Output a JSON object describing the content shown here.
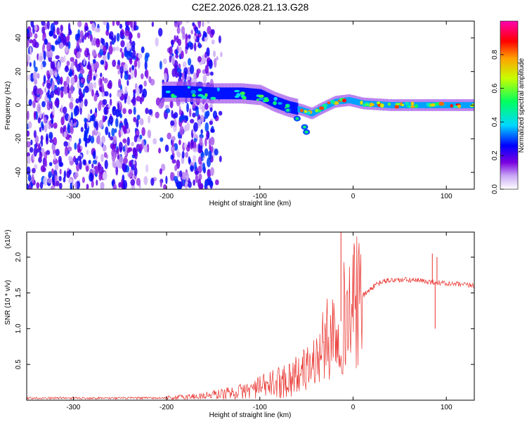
{
  "chart_data": [
    {
      "type": "heatmap",
      "title": "C2E2.2026.028.21.13.G28",
      "xlabel": "Height of straight line (km)",
      "ylabel": "Frequency (Hz)",
      "xlim": [
        -350,
        130
      ],
      "ylim": [
        -50,
        50
      ],
      "x_ticks": [
        -300,
        -200,
        -100,
        0,
        100
      ],
      "y_ticks": [
        -40,
        -20,
        0,
        20,
        40
      ],
      "colorbar": {
        "label": "Normalized spectral amplitude",
        "range": [
          0,
          1
        ],
        "ticks": [
          "0.0",
          "0.2",
          "0.4",
          "0.6",
          "0.8"
        ],
        "colors": [
          "#ffffff",
          "#c9a7f5",
          "#7a00e0",
          "#0000ff",
          "#00d8ff",
          "#00ff60",
          "#c8ff00",
          "#ffa000",
          "#ff0000",
          "#ff00b0"
        ]
      },
      "noise_region": {
        "x": [
          -350,
          -140
        ],
        "amplitude": [
          0.05,
          0.3
        ]
      },
      "ridge": [
        {
          "x": -205,
          "freq": 8
        },
        {
          "x": -180,
          "freq": 8
        },
        {
          "x": -150,
          "freq": 7
        },
        {
          "x": -120,
          "freq": 7
        },
        {
          "x": -100,
          "freq": 6
        },
        {
          "x": -85,
          "freq": 2
        },
        {
          "x": -70,
          "freq": -1
        },
        {
          "x": -55,
          "freq": -3
        },
        {
          "x": -45,
          "freq": -5
        },
        {
          "x": -35,
          "freq": -2
        },
        {
          "x": -20,
          "freq": 2
        },
        {
          "x": -5,
          "freq": 3
        },
        {
          "x": 10,
          "freq": 1
        },
        {
          "x": 40,
          "freq": 0
        },
        {
          "x": 80,
          "freq": 0
        },
        {
          "x": 130,
          "freq": 0
        }
      ],
      "branch": [
        {
          "x": -70,
          "freq": -3
        },
        {
          "x": -60,
          "freq": -8
        },
        {
          "x": -52,
          "freq": -13
        },
        {
          "x": -50,
          "freq": -16
        }
      ]
    },
    {
      "type": "line",
      "xlabel": "Height of straight line (km)",
      "ylabel": "SNR (10 * v/v)",
      "y_multiplier": "(x10⁴)",
      "xlim": [
        -350,
        130
      ],
      "ylim": [
        0,
        2.35
      ],
      "x_ticks": [
        -300,
        -200,
        -100,
        0,
        100
      ],
      "y_ticks": [
        "0.5",
        "1.0",
        "1.5",
        "2.0"
      ],
      "color": "#e8322d",
      "trend": [
        {
          "x": -350,
          "y": 0.03
        },
        {
          "x": -200,
          "y": 0.03
        },
        {
          "x": -160,
          "y": 0.06
        },
        {
          "x": -120,
          "y": 0.12
        },
        {
          "x": -100,
          "y": 0.18
        },
        {
          "x": -80,
          "y": 0.25
        },
        {
          "x": -60,
          "y": 0.35
        },
        {
          "x": -40,
          "y": 0.55
        },
        {
          "x": -30,
          "y": 0.8
        },
        {
          "x": -20,
          "y": 1.0
        },
        {
          "x": -10,
          "y": 1.15
        },
        {
          "x": 0,
          "y": 1.3
        },
        {
          "x": 10,
          "y": 1.45
        },
        {
          "x": 20,
          "y": 1.57
        },
        {
          "x": 30,
          "y": 1.65
        },
        {
          "x": 40,
          "y": 1.68
        },
        {
          "x": 60,
          "y": 1.68
        },
        {
          "x": 80,
          "y": 1.66
        },
        {
          "x": 100,
          "y": 1.63
        },
        {
          "x": 130,
          "y": 1.6
        }
      ],
      "spikes": [
        {
          "x": -13,
          "y": 2.35
        },
        {
          "x": 85,
          "y": 2.05
        },
        {
          "x": 90,
          "y": 2.0
        },
        {
          "x": 88,
          "y": 1.0
        }
      ]
    }
  ]
}
